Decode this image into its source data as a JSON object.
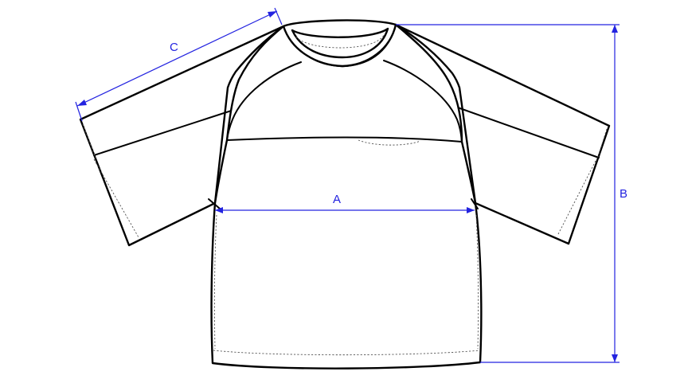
{
  "diagram": {
    "measurements": [
      {
        "id": "a",
        "label": "A"
      },
      {
        "id": "b",
        "label": "B"
      },
      {
        "id": "c",
        "label": "C"
      }
    ],
    "colors": {
      "dimension": "#2323e0",
      "outline": "#000000",
      "fill": "#ffffff"
    }
  }
}
